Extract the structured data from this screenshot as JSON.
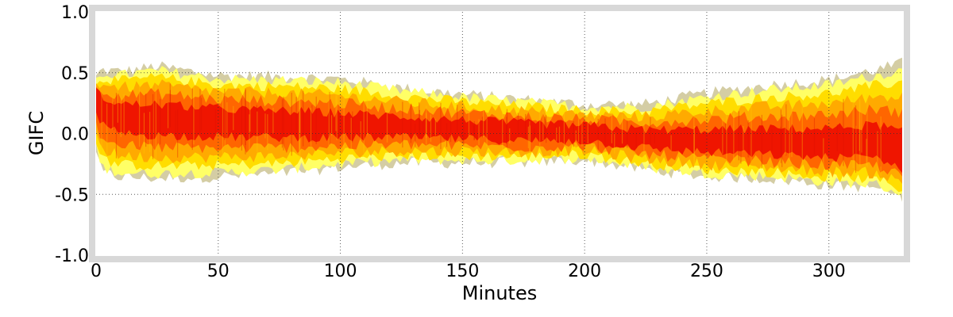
{
  "chart_data": {
    "type": "heatmap",
    "title": "",
    "xlabel": "Minutes",
    "ylabel": "GIFC",
    "xlim": [
      0,
      330
    ],
    "ylim": [
      -1.0,
      1.0
    ],
    "x_ticks": [
      0,
      50,
      100,
      150,
      200,
      250,
      300
    ],
    "x_tick_labels": [
      "0",
      "50",
      "100",
      "150",
      "200",
      "250",
      "300"
    ],
    "y_ticks": [
      1.0,
      0.5,
      0.0,
      -0.5,
      -1.0
    ],
    "y_tick_labels": [
      "1.0",
      "0.5",
      "0.0",
      "-0.5",
      "-1.0"
    ],
    "grid": true,
    "colormap": [
      "#ffff66",
      "#ffdd00",
      "#ffaa00",
      "#ff6600",
      "#ee1100"
    ],
    "frame_color": "#d8d8d8",
    "density_band": {
      "x": [
        0,
        2,
        10,
        25,
        50,
        75,
        100,
        125,
        150,
        175,
        200,
        225,
        250,
        275,
        300,
        320,
        330
      ],
      "upper": [
        0.45,
        0.5,
        0.48,
        0.52,
        0.45,
        0.44,
        0.42,
        0.35,
        0.3,
        0.26,
        0.22,
        0.22,
        0.3,
        0.36,
        0.4,
        0.48,
        0.52
      ],
      "center": [
        0.3,
        0.22,
        0.14,
        0.12,
        0.1,
        0.08,
        0.06,
        0.05,
        0.03,
        0.01,
        0.0,
        -0.05,
        -0.08,
        -0.1,
        -0.11,
        -0.1,
        -0.2
      ],
      "lower": [
        -0.1,
        -0.28,
        -0.32,
        -0.33,
        -0.32,
        -0.3,
        -0.25,
        -0.22,
        -0.22,
        -0.22,
        -0.2,
        -0.28,
        -0.33,
        -0.35,
        -0.4,
        -0.42,
        -0.5
      ]
    }
  }
}
